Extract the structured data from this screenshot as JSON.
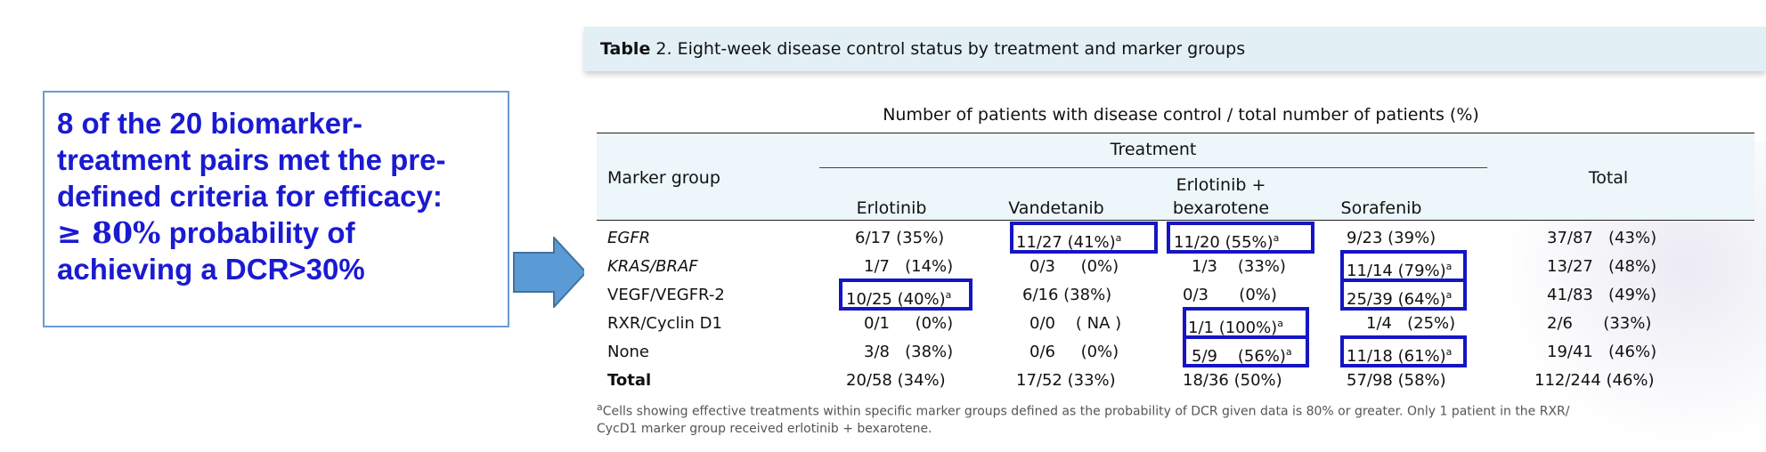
{
  "callout": {
    "line1": "8 of the 20 biomarker-",
    "line2": "treatment pairs met the pre-",
    "line3": "defined criteria for efficacy:",
    "line4_sym": "≥ 80%",
    "line4_rest": " probability of",
    "line5": "achieving a DCR>30%"
  },
  "table": {
    "caption_label": "Table",
    "caption_num": "2.",
    "caption_text": "Eight-week disease control status by treatment and marker groups",
    "subtitle": "Number of patients with disease control / total number of patients (%)",
    "treatment_header": "Treatment",
    "marker_header": "Marker group",
    "total_header": "Total",
    "columns": [
      "Erlotinib",
      "Vandetanib",
      "Erlotinib +",
      "bexarotene",
      "Sorafenib"
    ],
    "rows": [
      {
        "marker": "EGFR",
        "c1": "6/17 (35%)",
        "c2": "11/27 (41%)",
        "c3": "11/20 (55%)",
        "c4": "9/23 (39%)",
        "total": "37/87   (43%)"
      },
      {
        "marker": "KRAS/BRAF",
        "c1": "1/7   (14%)",
        "c2": "0/3     (0%)",
        "c3": "1/3    (33%)",
        "c4": "11/14 (79%)",
        "total": "13/27   (48%)"
      },
      {
        "marker": "VEGF/VEGFR-2",
        "c1": "10/25 (40%)",
        "c2": "6/16 (38%)",
        "c3": "0/3      (0%)",
        "c4": "25/39 (64%)",
        "total": "41/83   (49%)"
      },
      {
        "marker": "RXR/Cyclin D1",
        "c1": "0/1     (0%)",
        "c2": "0/0    ( NA )",
        "c3": "1/1 (100%)",
        "c4": "1/4   (25%)",
        "total": "2/6      (33%)"
      },
      {
        "marker": "None",
        "c1": "3/8   (38%)",
        "c2": "0/6     (0%)",
        "c3": "5/9    (56%)",
        "c4": "11/18 (61%)",
        "total": "19/41   (46%)"
      },
      {
        "marker": "Total",
        "c1": "20/58 (34%)",
        "c2": "17/52 (33%)",
        "c3": "18/36 (50%)",
        "c4": "57/98 (58%)",
        "total": "112/244 (46%)"
      }
    ],
    "sup": "a",
    "footnote_line1": "Cells showing effective treatments within specific marker groups defined as the probability of DCR given data is 80% or greater. Only 1 patient in the RXR/",
    "footnote_line2": "CycD1 marker group received erlotinib + bexarotene."
  },
  "colors": {
    "callout_text": "#1a1ad2",
    "callout_border": "#6a9ad6",
    "arrow_fill": "#5b9bd5",
    "highlight_box": "#1515c4",
    "caption_bg": "#e2f0f6",
    "header_bg": "#ecf6fb"
  },
  "icons": {
    "arrow": "right-arrow-icon"
  }
}
